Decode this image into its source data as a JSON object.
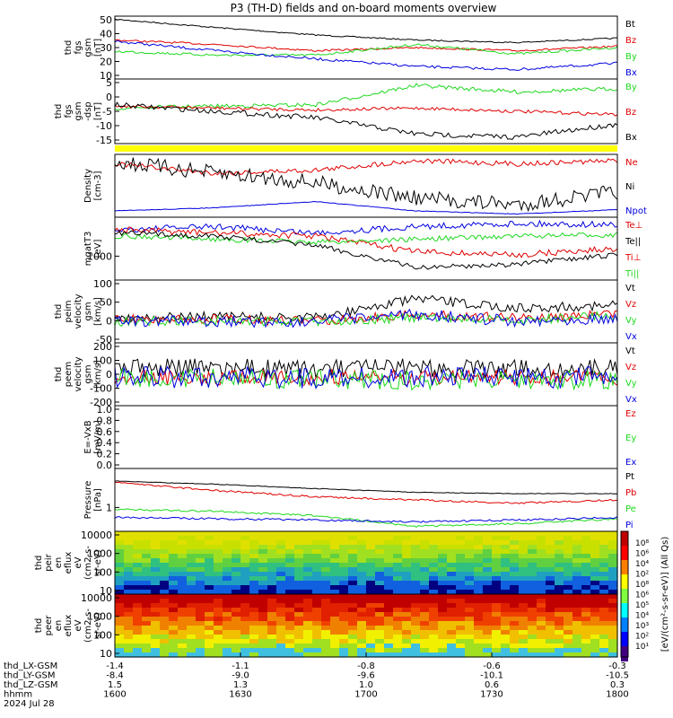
{
  "title": "P3 (TH-D) fields and on-board moments overview",
  "colors": {
    "black": "#000000",
    "red": "#e00000",
    "green": "#1ed81e",
    "blue": "#0000e0",
    "yellow": "#ffff00"
  },
  "panels": [
    {
      "ylabel": [
        "thd",
        "fgs",
        "gsm",
        "[nT]"
      ],
      "ticks": [
        "50",
        "40",
        "30",
        "20",
        "10"
      ],
      "legend": [
        "Bt",
        "Bz",
        "By",
        "Bx"
      ]
    },
    {
      "ylabel": [
        "thd",
        "fgs",
        "gsm",
        "-dsp",
        "[nT]"
      ],
      "ticks": [
        "5",
        "0",
        "-5",
        "-10",
        "-15"
      ],
      "legend": [
        "By",
        "Bz",
        "Bx"
      ]
    },
    {
      "ylabel": [
        "Density",
        "[cm-3]"
      ],
      "ticks": [],
      "legend": [
        "Ne",
        "Ni",
        "Npot"
      ]
    },
    {
      "ylabel": [
        "mgatT3",
        "[eV]"
      ],
      "ticks": [
        "1000"
      ],
      "legend": [
        "Te⊥",
        "Te||",
        "Ti⊥",
        "Ti||"
      ]
    },
    {
      "ylabel": [
        "thd",
        "peim",
        "velocity",
        "gsm",
        "[km/s]"
      ],
      "ticks": [
        "100",
        "50",
        "0",
        "-50"
      ],
      "legend": [
        "Vt",
        "Vz",
        "Vy",
        "Vx"
      ]
    },
    {
      "ylabel": [
        "thd",
        "peem",
        "velocity",
        "gsm",
        "[km/s]"
      ],
      "ticks": [
        "200",
        "100",
        "0",
        "-100",
        "-200"
      ],
      "legend": [
        "Vt",
        "Vz",
        "Vy",
        "Vx"
      ]
    },
    {
      "ylabel": [
        "E=-VxB",
        "[mV/m]"
      ],
      "ticks": [
        "1.0",
        "0.8",
        "0.6",
        "0.4",
        "0.2",
        "0.0"
      ],
      "legend": [
        "Ez",
        "Ey",
        "Ex"
      ]
    },
    {
      "ylabel": [
        "Pressure",
        "[nPa]"
      ],
      "ticks": [
        "1"
      ],
      "legend": [
        "Pt",
        "Pb",
        "Pe",
        "Pi"
      ]
    },
    {
      "ylabel": [
        "thd",
        "peir",
        "en",
        "eflux",
        "eV",
        "(cm2-s-",
        "sr-eV)"
      ],
      "ticks": [
        "10000",
        "1000",
        "100",
        "10"
      ],
      "legend": []
    },
    {
      "ylabel": [
        "thd",
        "peer",
        "en",
        "eflux",
        "eV",
        "(cm2-s-",
        "sr-eV)"
      ],
      "ticks": [
        "10000",
        "1000",
        "100",
        "10"
      ],
      "legend": []
    }
  ],
  "colorbar": {
    "label": "[eV/(cm²-s-sr-eV)] (All Qs)",
    "ticks": [
      "10⁸",
      "10⁶",
      "10⁴",
      "10²",
      "10⁸",
      "10⁶",
      "10⁵",
      "10⁴",
      "10³",
      "10²",
      "10¹"
    ]
  },
  "xaxis": {
    "row_labels": [
      "thd_LX-GSM",
      "thd_LY-GSM",
      "thd_LZ-GSM",
      "hhmm",
      "2024 Jul 28"
    ],
    "columns": [
      {
        "lx": "-1.4",
        "ly": "-8.4",
        "lz": "1.5",
        "hhmm": "1600"
      },
      {
        "lx": "-1.1",
        "ly": "-9.0",
        "lz": "1.3",
        "hhmm": "1630"
      },
      {
        "lx": "-0.8",
        "ly": "-9.6",
        "lz": "1.0",
        "hhmm": "1700"
      },
      {
        "lx": "-0.6",
        "ly": "-10.1",
        "lz": "0.6",
        "hhmm": "1730"
      },
      {
        "lx": "-0.3",
        "ly": "-10.5",
        "lz": "0.3",
        "hhmm": "1800"
      }
    ]
  },
  "chart_data": {
    "type": "line",
    "title": "P3 (TH-D) fields and on-board moments overview",
    "x": [
      "1600",
      "1630",
      "1700",
      "1730",
      "1800"
    ],
    "xlabel": "hhmm",
    "series": [
      {
        "name": "Bt",
        "values": [
          52,
          46,
          40,
          34,
          32
        ]
      },
      {
        "name": "Bz",
        "values": [
          32,
          30,
          26,
          28,
          25
        ]
      },
      {
        "name": "By",
        "values": [
          26,
          24,
          22,
          28,
          25
        ]
      },
      {
        "name": "Bx",
        "values": [
          31,
          25,
          20,
          10,
          14
        ]
      }
    ],
    "ylim": [
      0,
      55
    ],
    "grid": false
  }
}
